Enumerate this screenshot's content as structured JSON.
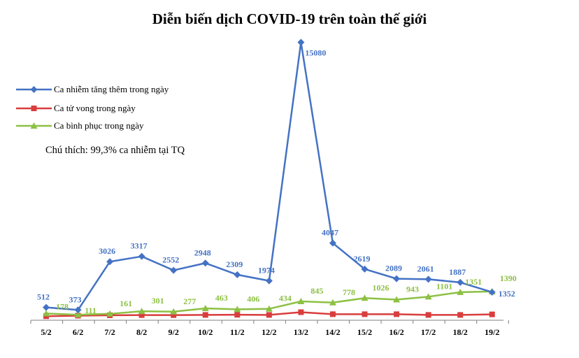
{
  "chart_data": {
    "type": "line",
    "title": "Diễn biến dịch COVID-19 trên toàn thế giới",
    "note": "Chú thích: 99,3% ca nhiễm tại TQ",
    "categories": [
      "5/2",
      "6/2",
      "7/2",
      "8/2",
      "9/2",
      "10/2",
      "11/2",
      "12/2",
      "13/2",
      "14/2",
      "15/2",
      "16/2",
      "17/2",
      "18/2",
      "19/2"
    ],
    "xlabel": "",
    "ylabel": "",
    "ylim": [
      0,
      15600
    ],
    "legend_position": "top-left",
    "series": [
      {
        "name": "Ca nhiễm  tăng thêm trong ngày",
        "color": "#4472C4",
        "marker": "diamond",
        "values": [
          512,
          373,
          3026,
          3317,
          2552,
          2948,
          2309,
          1974,
          15080,
          4047,
          2619,
          2089,
          2061,
          1887,
          1352
        ],
        "labels": [
          "512",
          "373",
          "3026",
          "3317",
          "2552",
          "2948",
          "2309",
          "1974",
          "15080",
          "4047",
          "2619",
          "2089",
          "2061",
          "1887",
          "1352"
        ]
      },
      {
        "name": "Ca tử vong trong ngày",
        "color": "#D93D3D",
        "marker": "square",
        "values": [
          30,
          60,
          80,
          90,
          90,
          100,
          110,
          100,
          250,
          140,
          140,
          140,
          100,
          100,
          130
        ],
        "labels": []
      },
      {
        "name": "Ca bình  phục trong ngày",
        "color": "#8DC043",
        "marker": "triangle",
        "values": [
          178,
          111,
          161,
          301,
          277,
          463,
          406,
          434,
          845,
          778,
          1026,
          943,
          1101,
          1351,
          1390
        ],
        "labels": [
          "178",
          "111",
          "161",
          "301",
          "277",
          "463",
          "406",
          "434",
          "845",
          "778",
          "1026",
          "943",
          "1101",
          "1351",
          "1390"
        ]
      }
    ]
  }
}
